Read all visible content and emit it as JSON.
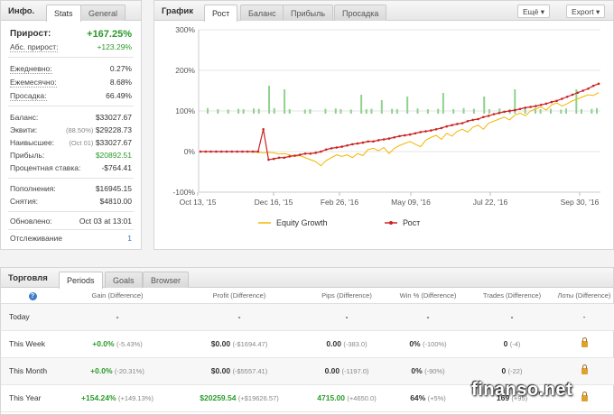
{
  "info": {
    "title": "Инфо.",
    "tabs": [
      "Stats",
      "General"
    ],
    "gain_label": "Прирост:",
    "gain_value": "+167.25%",
    "abs_gain_label": "Абс. прирост:",
    "abs_gain_value": "+123.29%",
    "daily_label": "Ежедневно:",
    "daily_value": "0.27%",
    "monthly_label": "Ежемесячно:",
    "monthly_value": "8.68%",
    "drawdown_label": "Просадка:",
    "drawdown_value": "66.49%",
    "balance_label": "Баланс:",
    "balance_value": "$33027.67",
    "equity_label": "Эквити:",
    "equity_note": "(88.50%)",
    "equity_value": "$29228.73",
    "highest_label": "Наивысшее:",
    "highest_note": "(Oct 01)",
    "highest_value": "$33027.67",
    "profit_label": "Прибыль:",
    "profit_value": "$20892.51",
    "interest_label": "Процентная ставка:",
    "interest_value": "-$764.41",
    "deposits_label": "Пополнения:",
    "deposits_value": "$16945.15",
    "withdrawals_label": "Снятия:",
    "withdrawals_value": "$4810.00",
    "updated_label": "Обновлено:",
    "updated_value": "Oct 03 at 13:01",
    "tracking_label": "Отслеживание",
    "tracking_value": "1"
  },
  "chart_panel": {
    "title": "График",
    "tabs": [
      "Рост",
      "Баланс",
      "Прибыль",
      "Просадка"
    ],
    "more_button": "Ещё",
    "export_button": "Export"
  },
  "chart_data": {
    "type": "line",
    "title": "",
    "xlabel": "",
    "ylabel": "",
    "x_ticks": [
      "Oct 13, '15",
      "Dec 16, '15",
      "Feb 26, '16",
      "May 09, '16",
      "Jul 22, '16",
      "Sep 30, '16"
    ],
    "y_ticks": [
      "300%",
      "200%",
      "100%",
      "0%",
      "-100%"
    ],
    "ylim": [
      -100,
      300
    ],
    "grid": true,
    "legend": "bottom",
    "series": [
      {
        "name": "Equity Growth",
        "color": "#f2b800",
        "values": [
          0,
          0,
          0,
          0,
          0,
          0,
          0,
          0,
          0,
          0,
          -1,
          -2,
          -3,
          -2,
          -3,
          -6,
          -5,
          -8,
          -12,
          -10,
          -15,
          -20,
          -25,
          -35,
          -22,
          -15,
          -8,
          -12,
          -8,
          -15,
          -5,
          -10,
          5,
          8,
          2,
          10,
          -5,
          8,
          15,
          20,
          25,
          18,
          12,
          28,
          35,
          40,
          30,
          45,
          38,
          50,
          55,
          48,
          60,
          65,
          55,
          70,
          75,
          80,
          85,
          78,
          90,
          95,
          88,
          100,
          105,
          110,
          102,
          115,
          120,
          112,
          118,
          125,
          130,
          135,
          140,
          138,
          145
        ]
      },
      {
        "name": "Рост",
        "color": "#cc2222",
        "values": [
          0,
          0,
          0,
          0,
          0,
          0,
          0,
          0,
          0,
          0,
          0,
          0,
          55,
          -20,
          -18,
          -15,
          -15,
          -12,
          -10,
          -8,
          -5,
          -5,
          -3,
          0,
          5,
          8,
          10,
          12,
          15,
          18,
          20,
          22,
          25,
          25,
          28,
          30,
          32,
          35,
          38,
          40,
          42,
          45,
          48,
          50,
          52,
          55,
          58,
          62,
          65,
          68,
          70,
          75,
          78,
          80,
          85,
          88,
          92,
          95,
          98,
          100,
          102,
          105,
          108,
          110,
          112,
          115,
          118,
          122,
          125,
          130,
          135,
          140,
          145,
          150,
          155,
          162,
          167
        ]
      }
    ],
    "volume_bars": [
      8,
      0,
      5,
      0,
      4,
      0,
      6,
      5,
      0,
      7,
      6,
      0,
      70,
      8,
      0,
      60,
      5,
      0,
      0,
      4,
      5,
      0,
      0,
      6,
      0,
      7,
      5,
      0,
      4,
      0,
      45,
      5,
      6,
      0,
      30,
      0,
      6,
      5,
      0,
      40,
      0,
      7,
      0,
      5,
      0,
      6,
      50,
      0,
      5,
      0,
      8,
      0,
      6,
      0,
      40,
      5,
      0,
      7,
      0,
      5,
      60,
      0,
      6,
      0,
      8,
      5,
      0,
      6,
      0,
      4,
      7,
      0,
      60,
      5,
      0,
      6,
      8
    ]
  },
  "trading": {
    "title": "Торговля",
    "tabs": [
      "Periods",
      "Goals",
      "Browser"
    ],
    "columns": [
      "?",
      "Gain (Difference)",
      "Profit (Difference)",
      "Pips (Difference)",
      "Win % (Difference)",
      "Trades (Difference)",
      "Лоты (Difference)"
    ],
    "rows": [
      {
        "period": "Today",
        "gain": "-",
        "gain_diff": "",
        "profit": "-",
        "profit_diff": "",
        "pips": "-",
        "pips_diff": "",
        "win": "-",
        "win_diff": "",
        "trades": "-",
        "trades_diff": "",
        "lots": "-"
      },
      {
        "period": "This Week",
        "gain": "+0.0%",
        "gain_diff": "(-5.43%)",
        "profit": "$0.00",
        "profit_diff": "(-$1694.47)",
        "pips": "0.00",
        "pips_diff": "(-383.0)",
        "win": "0%",
        "win_diff": "(-100%)",
        "trades": "0",
        "trades_diff": "(-4)",
        "lots": "lock"
      },
      {
        "period": "This Month",
        "gain": "+0.0%",
        "gain_diff": "(-20.31%)",
        "profit": "$0.00",
        "profit_diff": "(-$5557.41)",
        "pips": "0.00",
        "pips_diff": "(-1197.0)",
        "win": "0%",
        "win_diff": "(-90%)",
        "trades": "0",
        "trades_diff": "(-22)",
        "lots": "lock"
      },
      {
        "period": "This Year",
        "gain": "+154.24%",
        "gain_diff": "(+149.13%)",
        "profit": "$20259.54",
        "profit_diff": "(+$19626.57)",
        "pips": "4715.00",
        "pips_diff": "(+4650.0)",
        "win": "64%",
        "win_diff": "(+5%)",
        "trades": "169",
        "trades_diff": "(+95)",
        "lots": "lock"
      }
    ]
  },
  "watermark": "finanso.net"
}
